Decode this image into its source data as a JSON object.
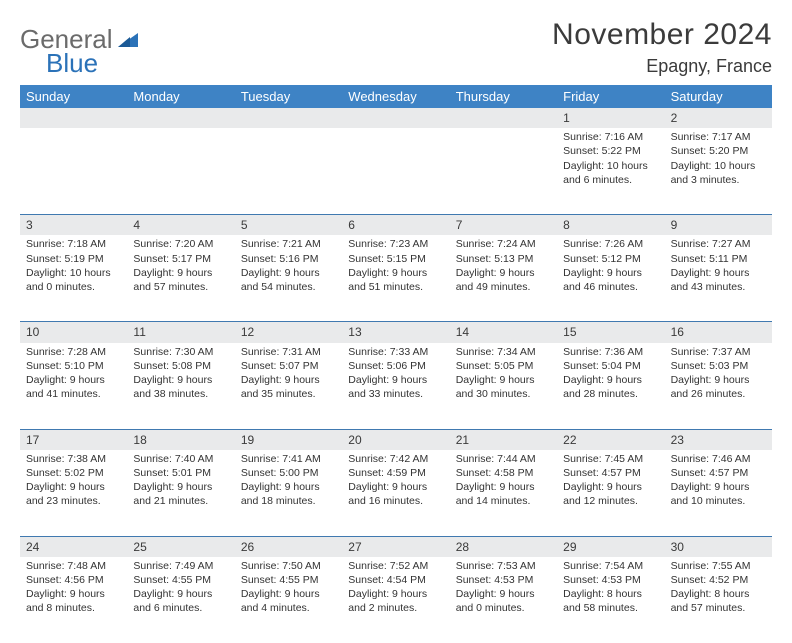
{
  "logo": {
    "text_general": "General",
    "text_blue": "Blue"
  },
  "header": {
    "month_title": "November 2024",
    "location": "Epagny, France"
  },
  "colors": {
    "header_bg": "#3e83c5",
    "header_text": "#ffffff",
    "daynum_bg": "#e9eaeb",
    "week_border": "#4079b0",
    "text": "#333333",
    "logo_gray": "#6b6b6b",
    "logo_blue": "#2b72b8",
    "page_bg": "#ffffff"
  },
  "day_headers": [
    "Sunday",
    "Monday",
    "Tuesday",
    "Wednesday",
    "Thursday",
    "Friday",
    "Saturday"
  ],
  "weeks": [
    {
      "nums": [
        "",
        "",
        "",
        "",
        "",
        "1",
        "2"
      ],
      "cells": [
        {},
        {},
        {},
        {},
        {},
        {
          "l1": "Sunrise: 7:16 AM",
          "l2": "Sunset: 5:22 PM",
          "l3": "Daylight: 10 hours",
          "l4": "and 6 minutes."
        },
        {
          "l1": "Sunrise: 7:17 AM",
          "l2": "Sunset: 5:20 PM",
          "l3": "Daylight: 10 hours",
          "l4": "and 3 minutes."
        }
      ]
    },
    {
      "nums": [
        "3",
        "4",
        "5",
        "6",
        "7",
        "8",
        "9"
      ],
      "cells": [
        {
          "l1": "Sunrise: 7:18 AM",
          "l2": "Sunset: 5:19 PM",
          "l3": "Daylight: 10 hours",
          "l4": "and 0 minutes."
        },
        {
          "l1": "Sunrise: 7:20 AM",
          "l2": "Sunset: 5:17 PM",
          "l3": "Daylight: 9 hours",
          "l4": "and 57 minutes."
        },
        {
          "l1": "Sunrise: 7:21 AM",
          "l2": "Sunset: 5:16 PM",
          "l3": "Daylight: 9 hours",
          "l4": "and 54 minutes."
        },
        {
          "l1": "Sunrise: 7:23 AM",
          "l2": "Sunset: 5:15 PM",
          "l3": "Daylight: 9 hours",
          "l4": "and 51 minutes."
        },
        {
          "l1": "Sunrise: 7:24 AM",
          "l2": "Sunset: 5:13 PM",
          "l3": "Daylight: 9 hours",
          "l4": "and 49 minutes."
        },
        {
          "l1": "Sunrise: 7:26 AM",
          "l2": "Sunset: 5:12 PM",
          "l3": "Daylight: 9 hours",
          "l4": "and 46 minutes."
        },
        {
          "l1": "Sunrise: 7:27 AM",
          "l2": "Sunset: 5:11 PM",
          "l3": "Daylight: 9 hours",
          "l4": "and 43 minutes."
        }
      ]
    },
    {
      "nums": [
        "10",
        "11",
        "12",
        "13",
        "14",
        "15",
        "16"
      ],
      "cells": [
        {
          "l1": "Sunrise: 7:28 AM",
          "l2": "Sunset: 5:10 PM",
          "l3": "Daylight: 9 hours",
          "l4": "and 41 minutes."
        },
        {
          "l1": "Sunrise: 7:30 AM",
          "l2": "Sunset: 5:08 PM",
          "l3": "Daylight: 9 hours",
          "l4": "and 38 minutes."
        },
        {
          "l1": "Sunrise: 7:31 AM",
          "l2": "Sunset: 5:07 PM",
          "l3": "Daylight: 9 hours",
          "l4": "and 35 minutes."
        },
        {
          "l1": "Sunrise: 7:33 AM",
          "l2": "Sunset: 5:06 PM",
          "l3": "Daylight: 9 hours",
          "l4": "and 33 minutes."
        },
        {
          "l1": "Sunrise: 7:34 AM",
          "l2": "Sunset: 5:05 PM",
          "l3": "Daylight: 9 hours",
          "l4": "and 30 minutes."
        },
        {
          "l1": "Sunrise: 7:36 AM",
          "l2": "Sunset: 5:04 PM",
          "l3": "Daylight: 9 hours",
          "l4": "and 28 minutes."
        },
        {
          "l1": "Sunrise: 7:37 AM",
          "l2": "Sunset: 5:03 PM",
          "l3": "Daylight: 9 hours",
          "l4": "and 26 minutes."
        }
      ]
    },
    {
      "nums": [
        "17",
        "18",
        "19",
        "20",
        "21",
        "22",
        "23"
      ],
      "cells": [
        {
          "l1": "Sunrise: 7:38 AM",
          "l2": "Sunset: 5:02 PM",
          "l3": "Daylight: 9 hours",
          "l4": "and 23 minutes."
        },
        {
          "l1": "Sunrise: 7:40 AM",
          "l2": "Sunset: 5:01 PM",
          "l3": "Daylight: 9 hours",
          "l4": "and 21 minutes."
        },
        {
          "l1": "Sunrise: 7:41 AM",
          "l2": "Sunset: 5:00 PM",
          "l3": "Daylight: 9 hours",
          "l4": "and 18 minutes."
        },
        {
          "l1": "Sunrise: 7:42 AM",
          "l2": "Sunset: 4:59 PM",
          "l3": "Daylight: 9 hours",
          "l4": "and 16 minutes."
        },
        {
          "l1": "Sunrise: 7:44 AM",
          "l2": "Sunset: 4:58 PM",
          "l3": "Daylight: 9 hours",
          "l4": "and 14 minutes."
        },
        {
          "l1": "Sunrise: 7:45 AM",
          "l2": "Sunset: 4:57 PM",
          "l3": "Daylight: 9 hours",
          "l4": "and 12 minutes."
        },
        {
          "l1": "Sunrise: 7:46 AM",
          "l2": "Sunset: 4:57 PM",
          "l3": "Daylight: 9 hours",
          "l4": "and 10 minutes."
        }
      ]
    },
    {
      "nums": [
        "24",
        "25",
        "26",
        "27",
        "28",
        "29",
        "30"
      ],
      "cells": [
        {
          "l1": "Sunrise: 7:48 AM",
          "l2": "Sunset: 4:56 PM",
          "l3": "Daylight: 9 hours",
          "l4": "and 8 minutes."
        },
        {
          "l1": "Sunrise: 7:49 AM",
          "l2": "Sunset: 4:55 PM",
          "l3": "Daylight: 9 hours",
          "l4": "and 6 minutes."
        },
        {
          "l1": "Sunrise: 7:50 AM",
          "l2": "Sunset: 4:55 PM",
          "l3": "Daylight: 9 hours",
          "l4": "and 4 minutes."
        },
        {
          "l1": "Sunrise: 7:52 AM",
          "l2": "Sunset: 4:54 PM",
          "l3": "Daylight: 9 hours",
          "l4": "and 2 minutes."
        },
        {
          "l1": "Sunrise: 7:53 AM",
          "l2": "Sunset: 4:53 PM",
          "l3": "Daylight: 9 hours",
          "l4": "and 0 minutes."
        },
        {
          "l1": "Sunrise: 7:54 AM",
          "l2": "Sunset: 4:53 PM",
          "l3": "Daylight: 8 hours",
          "l4": "and 58 minutes."
        },
        {
          "l1": "Sunrise: 7:55 AM",
          "l2": "Sunset: 4:52 PM",
          "l3": "Daylight: 8 hours",
          "l4": "and 57 minutes."
        }
      ]
    }
  ]
}
